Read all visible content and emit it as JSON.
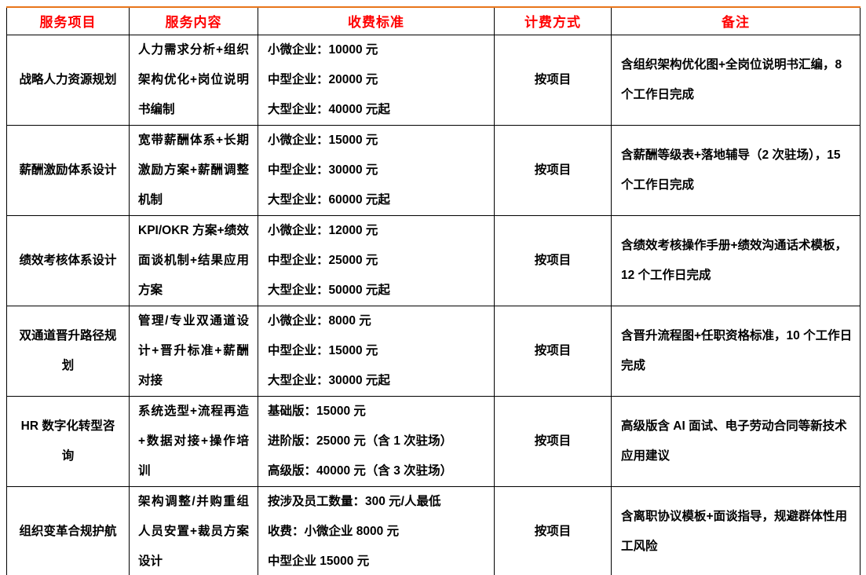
{
  "style": {
    "header_text_color": "#FF0000",
    "outer_border_color": "#E8751A",
    "grid_color": "#000000",
    "body_text_color": "#000000",
    "background_color": "#FFFFFF"
  },
  "table": {
    "columns": [
      {
        "key": "service",
        "label": "服务项目"
      },
      {
        "key": "content",
        "label": "服务内容"
      },
      {
        "key": "fees",
        "label": "收费标准"
      },
      {
        "key": "billing",
        "label": "计费方式"
      },
      {
        "key": "remark",
        "label": "备注"
      }
    ],
    "rows": [
      {
        "service": "战略人力资源规划",
        "content": "人力需求分析+组织架构优化+岗位说明书编制",
        "fees": [
          "小微企业：10000 元",
          "中型企业：20000 元",
          "大型企业：40000 元起"
        ],
        "billing": "按项目",
        "remark": "含组织架构优化图+全岗位说明书汇编，8 个工作日完成"
      },
      {
        "service": "薪酬激励体系设计",
        "content": "宽带薪酬体系+长期激励方案+薪酬调整机制",
        "fees": [
          "小微企业：15000 元",
          "中型企业：30000 元",
          "大型企业：60000 元起"
        ],
        "billing": "按项目",
        "remark": "含薪酬等级表+落地辅导（2 次驻场），15 个工作日完成"
      },
      {
        "service": "绩效考核体系设计",
        "content": "KPI/OKR 方案+绩效面谈机制+结果应用方案",
        "fees": [
          "小微企业：12000 元",
          "中型企业：25000 元",
          "大型企业：50000 元起"
        ],
        "billing": "按项目",
        "remark": "含绩效考核操作手册+绩效沟通话术模板，12 个工作日完成"
      },
      {
        "service": "双通道晋升路径规划",
        "content": "管理/专业双通道设计+晋升标准+薪酬对接",
        "fees": [
          "小微企业：8000 元",
          "中型企业：15000 元",
          "大型企业：30000 元起"
        ],
        "billing": "按项目",
        "remark": "含晋升流程图+任职资格标准，10 个工作日完成"
      },
      {
        "service": "HR 数字化转型咨询",
        "content": "系统选型+流程再造+数据对接+操作培训",
        "fees": [
          "基础版：15000 元",
          "进阶版：25000 元（含 1 次驻场）",
          "高级版：40000 元（含 3 次驻场）"
        ],
        "billing": "按项目",
        "remark": "高级版含 AI 面试、电子劳动合同等新技术应用建议"
      },
      {
        "service": "组织变革合规护航",
        "content": "架构调整/并购重组人员安置+裁员方案设计",
        "fees": [
          "按涉及员工数量：300 元/人最低",
          "收费：小微企业 8000 元",
          "中型企业 15000 元"
        ],
        "billing": "按项目",
        "remark": "含离职协议模板+面谈指导，规避群体性用工风险"
      }
    ]
  }
}
